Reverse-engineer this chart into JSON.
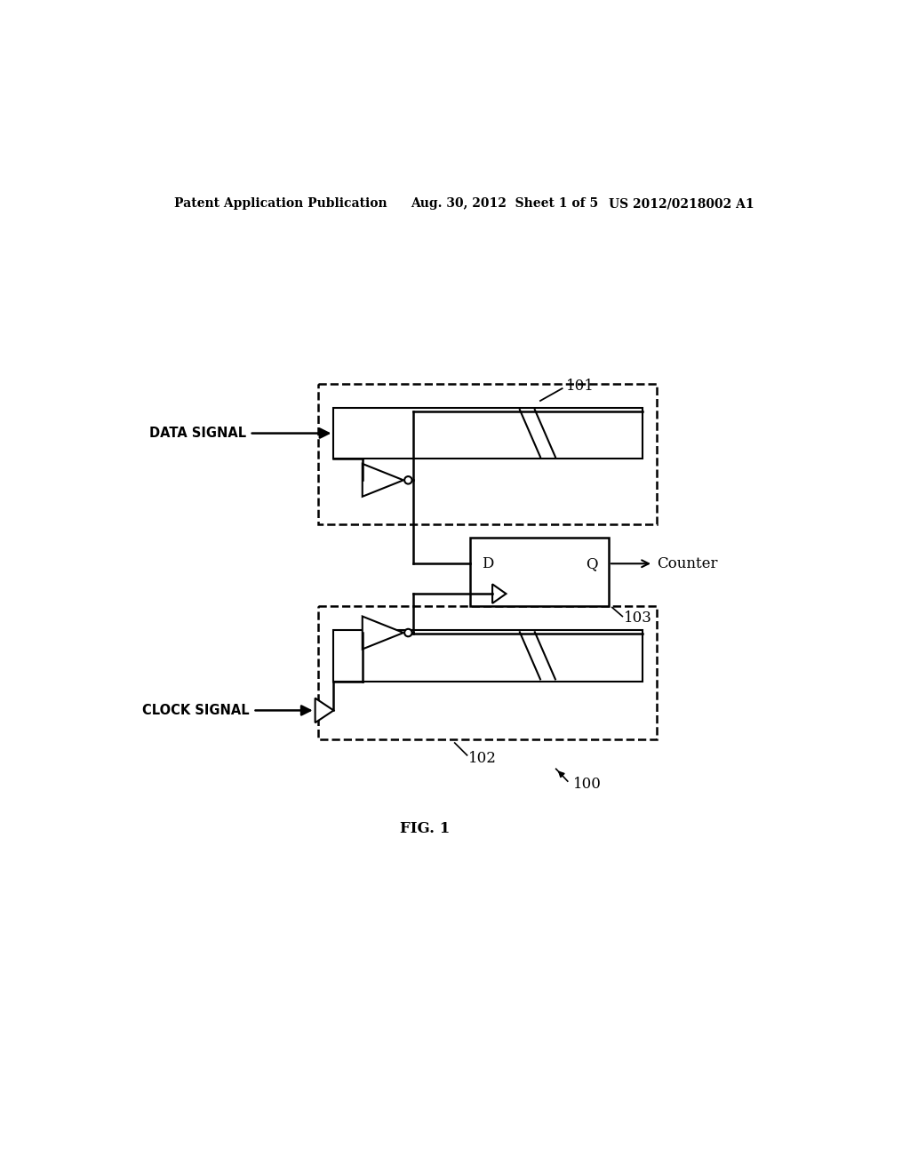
{
  "bg_color": "#ffffff",
  "header_left": "Patent Application Publication",
  "header_mid": "Aug. 30, 2012  Sheet 1 of 5",
  "header_right": "US 2012/0218002 A1",
  "fig_label": "FIG. 1",
  "label_100": "100",
  "label_101": "101",
  "label_102": "102",
  "label_103": "103",
  "label_counter": "Counter",
  "label_data": "DATA SIGNAL",
  "label_clock": "CLOCK SIGNAL",
  "dff_D": "D",
  "dff_Q": "Q"
}
